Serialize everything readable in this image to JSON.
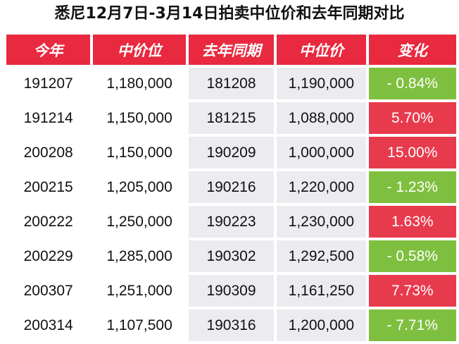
{
  "title": "悉尼12月7日-3月14日拍卖中位价和去年同期对比",
  "colors": {
    "header": "#e8293f",
    "increase": "#e83a4d",
    "decrease": "#7fbf3f",
    "shade": "#ececf0"
  },
  "headers": [
    "今年",
    "中价位",
    "去年同期",
    "中位价",
    "变化"
  ],
  "rows": [
    {
      "this_year": "191207",
      "this_median": "1,180,000",
      "last_year": "181208",
      "last_median": "1,190,000",
      "change": "- 0.84%",
      "direction": "down"
    },
    {
      "this_year": "191214",
      "this_median": "1,150,000",
      "last_year": "181215",
      "last_median": "1,088,000",
      "change": "5.70%",
      "direction": "up"
    },
    {
      "this_year": "200208",
      "this_median": "1,150,000",
      "last_year": "190209",
      "last_median": "1,000,000",
      "change": "15.00%",
      "direction": "up"
    },
    {
      "this_year": "200215",
      "this_median": "1,205,000",
      "last_year": "190216",
      "last_median": "1,220,000",
      "change": "- 1.23%",
      "direction": "down"
    },
    {
      "this_year": "200222",
      "this_median": "1,250,000",
      "last_year": "190223",
      "last_median": "1,230,000",
      "change": "1.63%",
      "direction": "up"
    },
    {
      "this_year": "200229",
      "this_median": "1,285,000",
      "last_year": "190302",
      "last_median": "1,292,500",
      "change": "- 0.58%",
      "direction": "down"
    },
    {
      "this_year": "200307",
      "this_median": "1,251,000",
      "last_year": "190309",
      "last_median": "1,161,250",
      "change": "7.73%",
      "direction": "up"
    },
    {
      "this_year": "200314",
      "this_median": "1,107,500",
      "last_year": "190316",
      "last_median": "1,200,000",
      "change": "- 7.71%",
      "direction": "down"
    }
  ]
}
